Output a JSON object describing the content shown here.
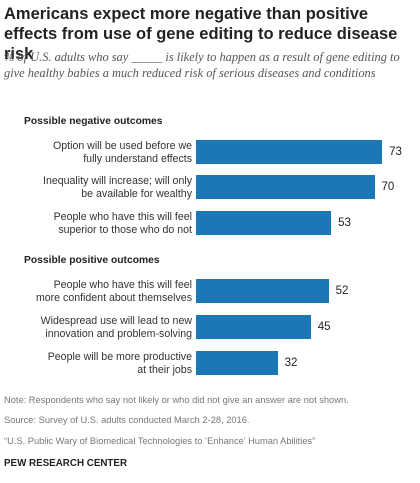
{
  "header": {
    "title": "Americans expect more negative than positive effects from use of gene editing to reduce disease risk",
    "subtitle": "% of U.S. adults who say _____ is likely to happen as a result of gene editing to give healthy babies a much reduced risk of serious diseases and conditions"
  },
  "chart_data": {
    "type": "bar",
    "orientation": "horizontal",
    "groups": [
      {
        "label": "Possible negative outcomes",
        "items": [
          {
            "label_lines": [
              "Option will be used before we",
              "fully understand effects"
            ],
            "value": 73
          },
          {
            "label_lines": [
              "Inequality will increase; will only",
              "be available for wealthy"
            ],
            "value": 70
          },
          {
            "label_lines": [
              "People who have this will feel",
              "superior to those who do not"
            ],
            "value": 53
          }
        ]
      },
      {
        "label": "Possible positive outcomes",
        "items": [
          {
            "label_lines": [
              "People who have this will feel",
              "more confident about themselves"
            ],
            "value": 52
          },
          {
            "label_lines": [
              "Widespread use will lead to new",
              "innovation and problem-solving"
            ],
            "value": 45
          },
          {
            "label_lines": [
              "People will be more productive",
              "at their jobs"
            ],
            "value": 32
          }
        ]
      }
    ],
    "xlim": [
      0,
      100
    ],
    "bar_color": "#1a78b4",
    "grid": false
  },
  "footer": {
    "note": "Note: Respondents who say not likely or who did not give an answer are not shown.",
    "source": "Source: Survey of U.S. adults conducted March 2-28, 2016.",
    "report": "“U.S. Public Wary of Biomedical Technologies to ‘Enhance’ Human Abilities”",
    "brand": "PEW RESEARCH CENTER"
  }
}
